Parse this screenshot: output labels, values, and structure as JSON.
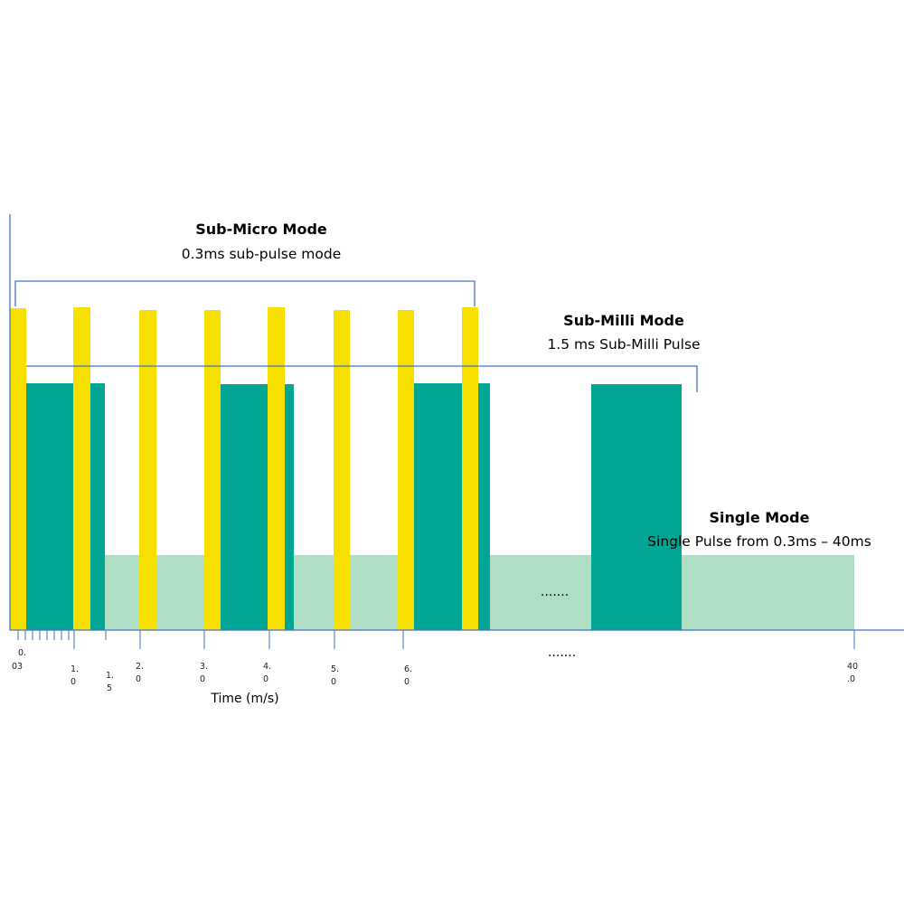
{
  "labels": {
    "sub_micro_title": "Sub-Micro Mode",
    "sub_micro_desc": "0.3ms sub-pulse mode",
    "sub_milli_title": "Sub-Milli Mode",
    "sub_milli_desc": "1.5 ms Sub-Milli Pulse",
    "single_title": "Single Mode",
    "single_desc": "Single Pulse from 0.3ms – 40ms",
    "x_axis_label": "Time (m/s)",
    "ellipsis_plot": ".......",
    "ellipsis_axis": "......."
  },
  "ticks": [
    {
      "line1": "0.",
      "line2": "03"
    },
    {
      "line1": "1.",
      "line2": "0"
    },
    {
      "line1": "1.",
      "line2": "5"
    },
    {
      "line1": "2.",
      "line2": "0"
    },
    {
      "line1": "3.",
      "line2": "0"
    },
    {
      "line1": "4.",
      "line2": "0"
    },
    {
      "line1": "5.",
      "line2": "0"
    },
    {
      "line1": "6.",
      "line2": "0"
    },
    {
      "line1": "40",
      "line2": ".0"
    }
  ],
  "colors": {
    "sub_micro_pulse": "#f7df00",
    "sub_milli_pulse": "#00a693",
    "single_pulse": "#aedfc4",
    "axis": "#4472c4",
    "bracket": "#4472c4"
  }
}
